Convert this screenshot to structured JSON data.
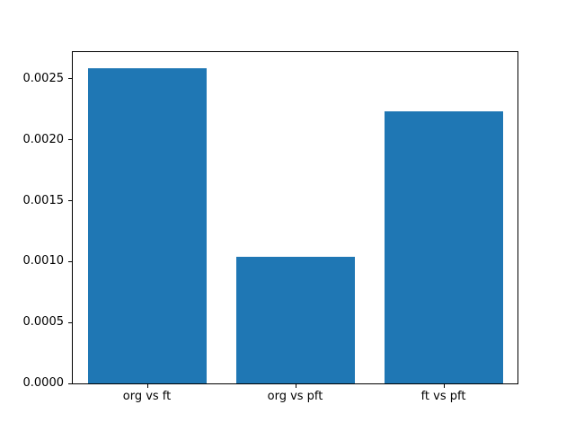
{
  "chart_data": {
    "type": "bar",
    "categories": [
      "org vs ft",
      "org vs pft",
      "ft vs pft"
    ],
    "values": [
      0.00259,
      0.00104,
      0.00223
    ],
    "title": "",
    "xlabel": "",
    "ylabel": "",
    "ylim": [
      0,
      0.00272
    ],
    "yticks": [
      0.0,
      0.0005,
      0.001,
      0.0015,
      0.002,
      0.0025
    ],
    "ytick_labels": [
      "0.0000",
      "0.0005",
      "0.0010",
      "0.0015",
      "0.0020",
      "0.0025"
    ],
    "bar_color": "#1f77b4",
    "bar_width_fraction": 0.8,
    "grid": false,
    "legend": "none",
    "background_color": "#ffffff",
    "spine_color": "#000000",
    "text_color": "#000000"
  }
}
